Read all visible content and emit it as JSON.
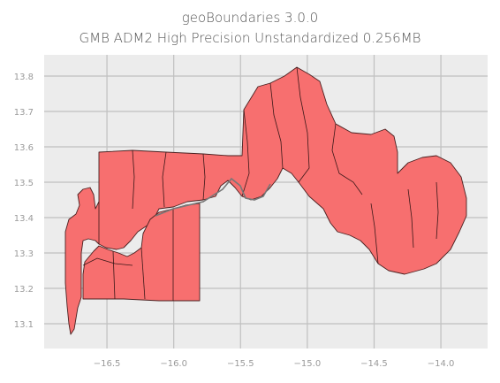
{
  "figure": {
    "title_line1": "geoBoundaries 3.0.0",
    "title_line2": "GMB ADM2 High Precision Unstandardized 0.256MB"
  },
  "chart_data": {
    "type": "map",
    "title": "geoBoundaries 3.0.0",
    "subtitle": "GMB ADM2 High Precision Unstandardized 0.256MB",
    "xlabel": "",
    "ylabel": "",
    "x_ticks": [
      "−16.5",
      "−16.0",
      "−15.5",
      "−15.0",
      "−14.5",
      "−14.0"
    ],
    "y_ticks": [
      "13.1",
      "13.2",
      "13.3",
      "13.4",
      "13.5",
      "13.6",
      "13.7",
      "13.8"
    ],
    "xlim": [
      -16.97,
      -13.65
    ],
    "ylim": [
      13.03,
      13.86
    ],
    "grid": true,
    "fill_color": "#f76f6f",
    "edge_color": "#4a2020",
    "background_color": "#ececec"
  }
}
